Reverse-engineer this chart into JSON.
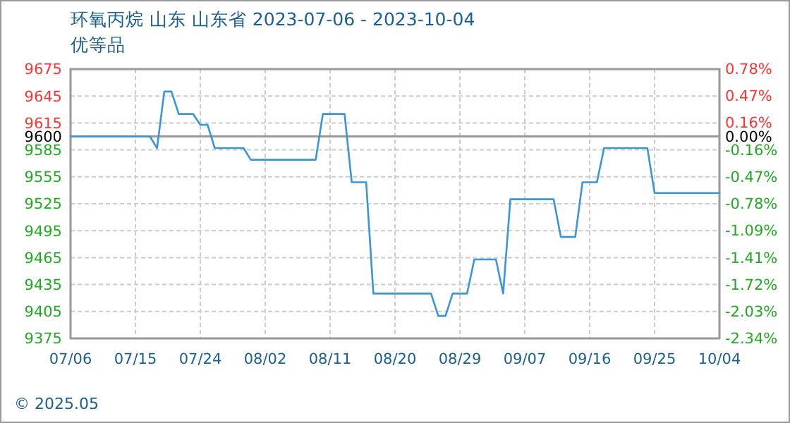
{
  "chart_data": {
    "type": "line",
    "title": "环氧丙烷 山东 山东省 2023-07-06 - 2023-10-04",
    "subtitle": "优等品",
    "x": [
      "2023-07-06",
      "2023-07-17",
      "2023-07-18",
      "2023-07-19",
      "2023-07-20",
      "2023-07-21",
      "2023-07-23",
      "2023-07-24",
      "2023-07-25",
      "2023-07-26",
      "2023-07-30",
      "2023-07-31",
      "2023-08-09",
      "2023-08-10",
      "2023-08-13",
      "2023-08-14",
      "2023-08-16",
      "2023-08-17",
      "2023-08-25",
      "2023-08-26",
      "2023-08-27",
      "2023-08-28",
      "2023-08-30",
      "2023-08-31",
      "2023-09-03",
      "2023-09-04",
      "2023-09-05",
      "2023-09-11",
      "2023-09-12",
      "2023-09-14",
      "2023-09-15",
      "2023-09-17",
      "2023-09-18",
      "2023-09-24",
      "2023-09-25",
      "2023-10-04"
    ],
    "series": [
      {
        "color": "#3a96d6",
        "values": [
          9600,
          9600,
          9587,
          9650,
          9650,
          9625,
          9625,
          9613,
          9613,
          9587,
          9587,
          9574,
          9574,
          9625,
          9625,
          9549,
          9549,
          9425,
          9425,
          9400,
          9400,
          9425,
          9425,
          9463,
          9463,
          9425,
          9530,
          9530,
          9488,
          9488,
          9549,
          9549,
          9587,
          9587,
          9537,
          9537
        ]
      }
    ],
    "xlim": [
      "2023-07-06",
      "2023-10-04"
    ],
    "xticks": [
      {
        "value": "2023-07-06",
        "label": "07/06"
      },
      {
        "value": "2023-07-15",
        "label": "07/15"
      },
      {
        "value": "2023-07-24",
        "label": "07/24"
      },
      {
        "value": "2023-08-02",
        "label": "08/02"
      },
      {
        "value": "2023-08-11",
        "label": "08/11"
      },
      {
        "value": "2023-08-20",
        "label": "08/20"
      },
      {
        "value": "2023-08-29",
        "label": "08/29"
      },
      {
        "value": "2023-09-07",
        "label": "09/07"
      },
      {
        "value": "2023-09-16",
        "label": "09/16"
      },
      {
        "value": "2023-09-25",
        "label": "09/25"
      },
      {
        "value": "2023-10-04",
        "label": "10/04"
      }
    ],
    "ylim": [
      9375,
      9675
    ],
    "yticks": [
      9375,
      9405,
      9435,
      9465,
      9495,
      9525,
      9555,
      9585,
      9600,
      9615,
      9645,
      9675
    ],
    "y2lim": [
      -2.34,
      0.78
    ],
    "y2ticks": [
      {
        "value": -2.34,
        "label": "-2.34%"
      },
      {
        "value": -2.03,
        "label": "-2.03%"
      },
      {
        "value": -1.72,
        "label": "-1.72%"
      },
      {
        "value": -1.41,
        "label": "-1.41%"
      },
      {
        "value": -1.09,
        "label": "-1.09%"
      },
      {
        "value": -0.78,
        "label": "-0.78%"
      },
      {
        "value": -0.47,
        "label": "-0.47%"
      },
      {
        "value": -0.16,
        "label": "-0.16%"
      },
      {
        "value": 0,
        "label": "0.00%"
      },
      {
        "value": 0.16,
        "label": "0.16%"
      },
      {
        "value": 0.47,
        "label": "0.47%"
      },
      {
        "value": 0.78,
        "label": "0.78%"
      }
    ],
    "ref_lines": [
      {
        "axis": "y",
        "value": 9600,
        "color": "#999999"
      }
    ],
    "grid": true,
    "marker": "none",
    "line_style": "solid",
    "annotations": [
      "© 2025.05"
    ]
  }
}
